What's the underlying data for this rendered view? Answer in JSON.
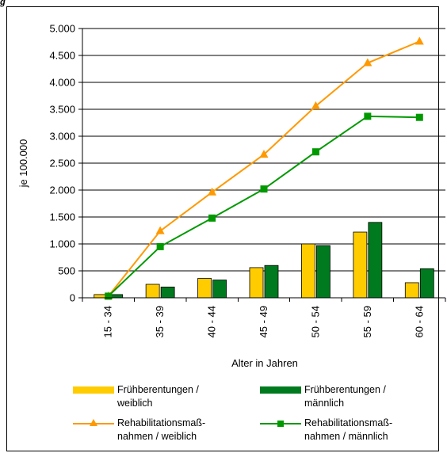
{
  "corner_mark": "g",
  "chart_data": {
    "type": "bar",
    "categories": [
      "15 - 34",
      "35 - 39",
      "40 - 44",
      "45 - 49",
      "50 - 54",
      "55 - 59",
      "60 - 64"
    ],
    "ylabel": "je 100.000",
    "xlabel": "Alter in Jahren",
    "ylim": [
      0,
      5000
    ],
    "yticks": [
      0,
      500,
      1000,
      1500,
      2000,
      2500,
      3000,
      3500,
      4000,
      4500,
      5000
    ],
    "ytick_labels": [
      "0",
      "500",
      "1.000",
      "1.500",
      "2.000",
      "2.500",
      "3.000",
      "3.500",
      "4.000",
      "4.500",
      "5.000"
    ],
    "grid": true,
    "legend_position": "bottom",
    "series": [
      {
        "name": "Frühberentungen / weiblich",
        "kind": "bar",
        "color": "#FFCC00",
        "values": [
          60,
          250,
          360,
          560,
          1000,
          1220,
          280
        ]
      },
      {
        "name": "Frühberentungen / männlich",
        "kind": "bar",
        "color": "#007A1F",
        "values": [
          60,
          200,
          330,
          600,
          970,
          1400,
          540
        ]
      },
      {
        "name": "Rehabilitationsmaß- nahmen / weiblich",
        "kind": "line",
        "marker": "triangle",
        "color": "#FF9900",
        "values": [
          30,
          1240,
          1960,
          2660,
          3560,
          4360,
          4760
        ]
      },
      {
        "name": "Rehabilitationsmaß- nahmen / männlich",
        "kind": "line",
        "marker": "square",
        "color": "#009900",
        "values": [
          30,
          950,
          1480,
          2020,
          2710,
          3370,
          3350
        ]
      }
    ]
  },
  "legend": {
    "items": [
      {
        "label": "Frühberentungen /\nweiblich"
      },
      {
        "label": "Frühberentungen /\nmännlich"
      },
      {
        "label": "Rehabilitationsmaß-\nnahmen / weiblich"
      },
      {
        "label": "Rehabilitationsmaß-\nnahmen / männlich"
      }
    ]
  }
}
